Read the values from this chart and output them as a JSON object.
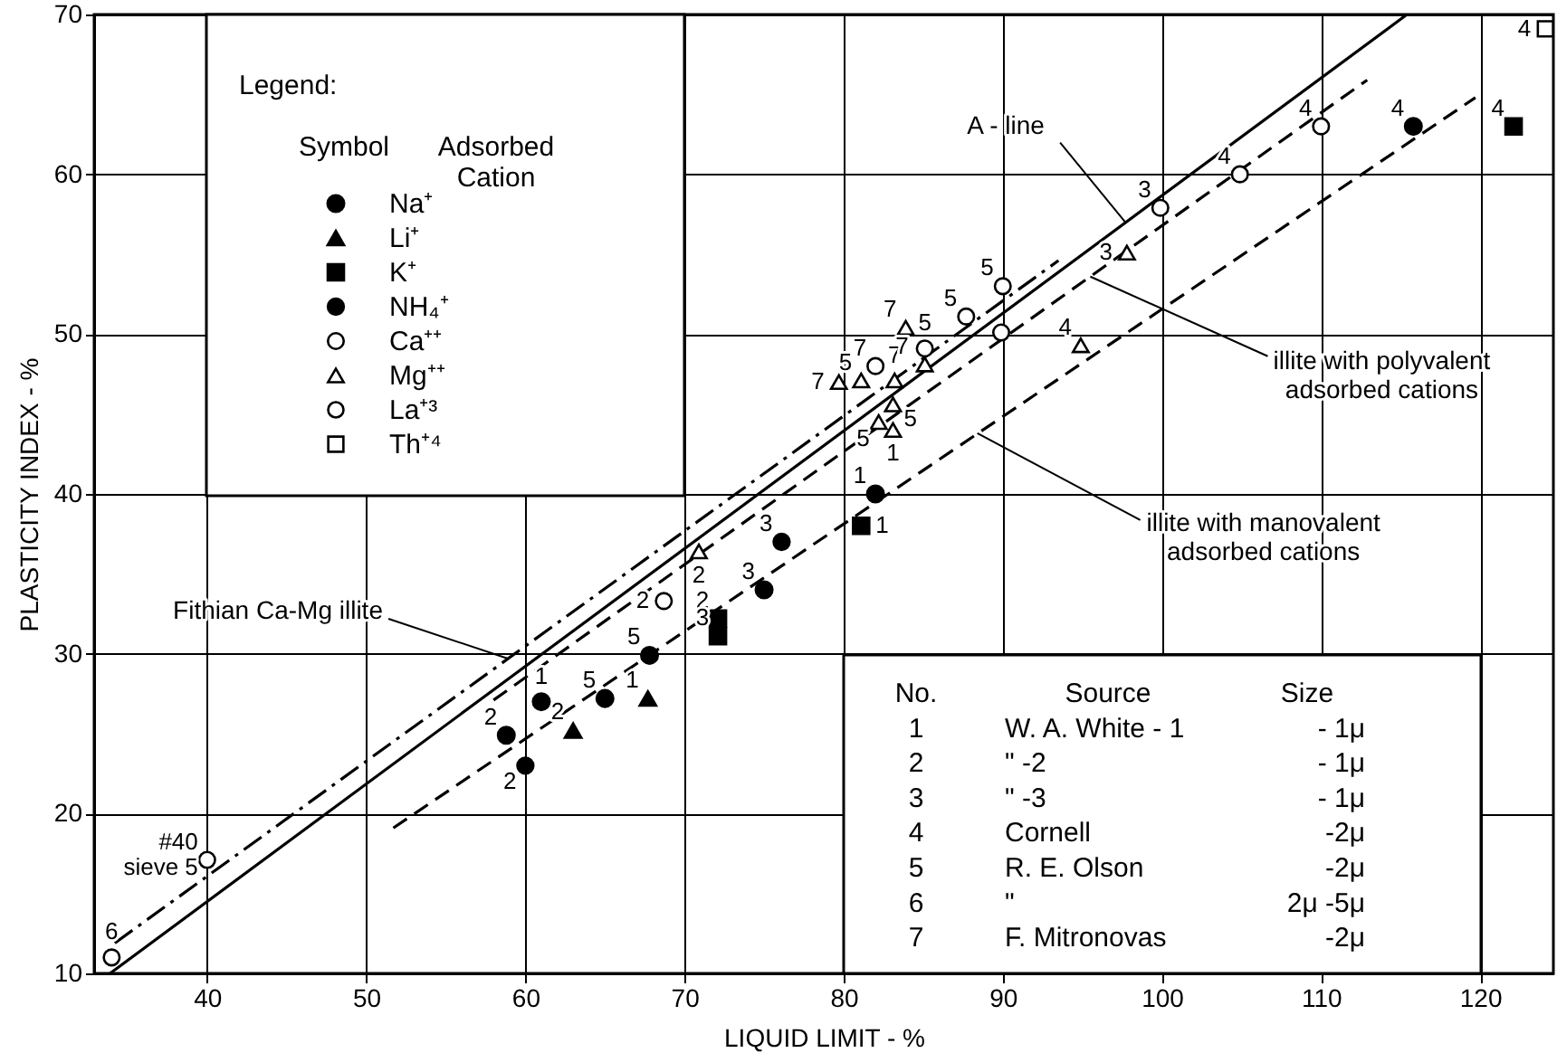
{
  "chart_data": {
    "type": "scatter",
    "xlabel": "LIQUID LIMIT - %",
    "ylabel": "PLASTICITY INDEX - %",
    "xlim": [
      32.9,
      124.6
    ],
    "ylim": [
      10,
      70
    ],
    "xticks": [
      40,
      50,
      60,
      70,
      80,
      90,
      100,
      110,
      120
    ],
    "yticks": [
      10,
      20,
      30,
      40,
      50,
      60,
      70
    ],
    "grid": true,
    "legend": "top left",
    "legend_title": "Legend:",
    "series": [
      {
        "type": "scatter",
        "name": "Na⁺",
        "color": "#000000",
        "marker": "circle",
        "x": [
          61.0,
          58.8,
          65.0,
          67.8,
          75.0,
          82.0,
          115.8
        ],
        "values": [
          27.0,
          24.9,
          27.2,
          29.9,
          34.0,
          40.0,
          63.0
        ]
      },
      {
        "type": "scatter",
        "name": "Li⁺",
        "color": "#000000",
        "marker": "triangle",
        "x": [
          63.0,
          67.7
        ],
        "values": [
          25.2,
          27.2
        ]
      },
      {
        "type": "scatter",
        "name": "K⁺",
        "color": "#000000",
        "marker": "square",
        "x": [
          72.1,
          72.1,
          81.1,
          122.1
        ],
        "values": [
          32.2,
          31.1,
          38.0,
          63.0
        ]
      },
      {
        "type": "scatter",
        "name": "NH₄⁺",
        "color": "#000000",
        "marker": "circle",
        "x": [
          60.0,
          76.1
        ],
        "values": [
          23.0,
          37.0
        ]
      },
      {
        "type": "scatter",
        "name": "Ca⁺⁺",
        "color": "#ffffff",
        "marker": "circle",
        "x": [
          34.0,
          40.0,
          68.7,
          82.0,
          85.1,
          87.7,
          90.0,
          89.9,
          99.9,
          104.9,
          110.0
        ],
        "values": [
          11.0,
          17.1,
          33.3,
          48.0,
          49.1,
          51.1,
          53.0,
          50.1,
          57.9,
          60.0,
          63.0
        ]
      },
      {
        "type": "scatter",
        "name": "Mg⁺⁺",
        "color": "#ffffff",
        "marker": "triangle",
        "x": [
          70.9,
          79.7,
          81.1,
          83.2,
          83.9,
          85.1,
          83.1,
          82.2,
          83.1,
          97.8,
          94.9
        ],
        "values": [
          36.4,
          47.0,
          47.1,
          47.1,
          50.4,
          48.1,
          45.6,
          44.5,
          44.0,
          55.1,
          49.3
        ]
      },
      {
        "type": "scatter",
        "name": "La⁺³",
        "color": "#ffffff",
        "marker": "circle"
      },
      {
        "type": "scatter",
        "name": "Th⁺⁴",
        "color": "#ffffff",
        "marker": "square",
        "x": [
          124.1
        ],
        "values": [
          69.1
        ]
      },
      {
        "type": "line",
        "color": "#000000",
        "line_style": "solid",
        "x": [
          33.9,
          115.4
        ],
        "values": [
          10,
          70
        ]
      },
      {
        "type": "line",
        "color": "#000000",
        "line_style": "dashdot",
        "x": [
          34.2,
          93.5
        ],
        "values": [
          11.9,
          54.6
        ]
      },
      {
        "type": "line",
        "color": "#000000",
        "line_style": "dashed",
        "x": [
          58,
          112.9
        ],
        "values": [
          27.1,
          65.9
        ]
      },
      {
        "type": "line",
        "color": "#000000",
        "line_style": "dashed",
        "x": [
          51.7,
          119.7
        ],
        "values": [
          19.1,
          64.8
        ]
      }
    ],
    "annotations": [
      "Symbol\tAdsorbed\nCation",
      "No.\tSource\tSize",
      "1\tW. A. White - 1\t- 1μ",
      "2\t\"     -2\t- 1μ",
      "3\t\"     -3\t- 1μ",
      "4\tCornell\t-2μ",
      "5\tR. E. Olson\t-2μ",
      "6\t\"\t2μ -5μ",
      "7\tF. Mitronovas\t-2μ",
      {
        "text": "A - line",
        "x": 97.7,
        "y": 57.0
      },
      {
        "text": "illite with polyvalent\nadsorbed cations",
        "x": 95.5,
        "y": 53.6
      },
      {
        "text": "illite with manovalent\nadsorbed cations",
        "x": 88.4,
        "y": 43.8
      },
      {
        "text": "Fithian Ca-Mg illite",
        "x": 58.9,
        "y": 29.7
      },
      {
        "text": "1",
        "x": 61.0,
        "y": 27.0
      },
      {
        "text": "2",
        "x": 58.8,
        "y": 24.9
      },
      {
        "text": "5",
        "x": 65.0,
        "y": 27.2
      },
      {
        "text": "5",
        "x": 67.8,
        "y": 29.9
      },
      {
        "text": "3",
        "x": 75.0,
        "y": 34.0
      },
      {
        "text": "1",
        "x": 82.0,
        "y": 40.0
      },
      {
        "text": "4",
        "x": 115.8,
        "y": 63.0
      },
      {
        "text": "2",
        "x": 63.0,
        "y": 25.2
      },
      {
        "text": "1",
        "x": 67.7,
        "y": 27.2
      },
      {
        "text": "2",
        "x": 72.1,
        "y": 32.2
      },
      {
        "text": "3",
        "x": 72.1,
        "y": 31.1
      },
      {
        "text": "1",
        "x": 81.1,
        "y": 38.0
      },
      {
        "text": "4",
        "x": 122.1,
        "y": 63.0
      },
      {
        "text": "2",
        "x": 60.0,
        "y": 23.0
      },
      {
        "text": "3",
        "x": 76.1,
        "y": 37.0
      },
      {
        "text": "6",
        "x": 34.0,
        "y": 11.0
      },
      {
        "text": "#40\nsieve 5",
        "x": 40.0,
        "y": 17.1
      },
      {
        "text": "2",
        "x": 68.7,
        "y": 33.3
      },
      {
        "text": "7",
        "x": 82.0,
        "y": 48.0
      },
      {
        "text": "5",
        "x": 85.1,
        "y": 49.1
      },
      {
        "text": "5",
        "x": 87.7,
        "y": 51.1
      },
      {
        "text": "5",
        "x": 90.0,
        "y": 53.0
      },
      {
        "text": "3",
        "x": 99.9,
        "y": 57.9
      },
      {
        "text": "4",
        "x": 104.9,
        "y": 60.0
      },
      {
        "text": "4",
        "x": 110.0,
        "y": 63.0
      },
      {
        "text": "2",
        "x": 70.9,
        "y": 36.4
      },
      {
        "text": "7",
        "x": 79.7,
        "y": 47.0
      },
      {
        "text": "5",
        "x": 81.1,
        "y": 47.1
      },
      {
        "text": "7",
        "x": 83.2,
        "y": 47.1
      },
      {
        "text": "7",
        "x": 83.9,
        "y": 50.4
      },
      {
        "text": "7",
        "x": 85.1,
        "y": 48.1
      },
      {
        "text": "5",
        "x": 83.1,
        "y": 45.6
      },
      {
        "text": "5",
        "x": 82.2,
        "y": 44.5
      },
      {
        "text": "1",
        "x": 83.1,
        "y": 44.0
      },
      {
        "text": "3",
        "x": 97.8,
        "y": 55.1
      },
      {
        "text": "4",
        "x": 94.9,
        "y": 49.3
      },
      {
        "text": "4",
        "x": 124.1,
        "y": 69.1
      }
    ]
  }
}
